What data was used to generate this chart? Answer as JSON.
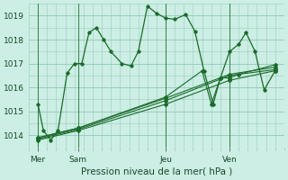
{
  "background_color": "#cceee4",
  "grid_color": "#99ccbb",
  "line_color": "#1a6b2a",
  "title": "Pression niveau de la mer( hPa )",
  "ylim": [
    1013.5,
    1019.5
  ],
  "yticks": [
    1014,
    1015,
    1016,
    1017,
    1018,
    1019
  ],
  "xlim": [
    -0.5,
    13.5
  ],
  "x_tick_positions_named": [
    0,
    2.2,
    7.0,
    10.5
  ],
  "x_tick_names": [
    "Mer",
    "Sam",
    "Jeu",
    "Ven"
  ],
  "vline_positions": [
    0,
    2.2,
    7.0,
    10.5
  ],
  "series1_x": [
    0.0,
    0.3,
    0.7,
    1.1,
    1.6,
    2.0,
    2.4,
    2.8,
    3.2,
    3.6,
    4.0,
    4.6,
    5.1,
    5.5,
    6.0,
    6.5,
    7.0,
    7.5,
    8.1,
    8.6,
    9.1,
    9.6,
    10.0,
    10.5,
    11.0,
    11.4,
    11.9,
    12.4,
    13.0
  ],
  "series1_y": [
    1015.3,
    1014.2,
    1013.8,
    1014.2,
    1016.6,
    1017.0,
    1017.0,
    1018.3,
    1018.5,
    1018.0,
    1017.5,
    1017.0,
    1016.9,
    1017.5,
    1019.4,
    1019.1,
    1018.9,
    1018.85,
    1019.05,
    1018.35,
    1016.7,
    1015.3,
    1016.4,
    1017.5,
    1017.8,
    1018.3,
    1017.5,
    1015.9,
    1016.7
  ],
  "series2_x": [
    0.0,
    2.2,
    7.0,
    10.5,
    13.0
  ],
  "series2_y": [
    1013.8,
    1014.2,
    1015.3,
    1016.3,
    1016.7
  ],
  "series3_x": [
    0.0,
    2.2,
    7.0,
    10.5,
    13.0
  ],
  "series3_y": [
    1013.85,
    1014.25,
    1015.45,
    1016.5,
    1016.75
  ],
  "series4_x": [
    0.0,
    2.2,
    7.0,
    10.5,
    13.0
  ],
  "series4_y": [
    1013.9,
    1014.3,
    1015.55,
    1016.55,
    1016.85
  ],
  "series5_x": [
    0.0,
    2.2,
    7.0,
    9.0,
    9.5,
    10.0,
    10.5,
    11.0,
    13.0
  ],
  "series5_y": [
    1013.9,
    1014.3,
    1015.6,
    1016.7,
    1015.3,
    1016.4,
    1016.4,
    1016.55,
    1016.95
  ]
}
